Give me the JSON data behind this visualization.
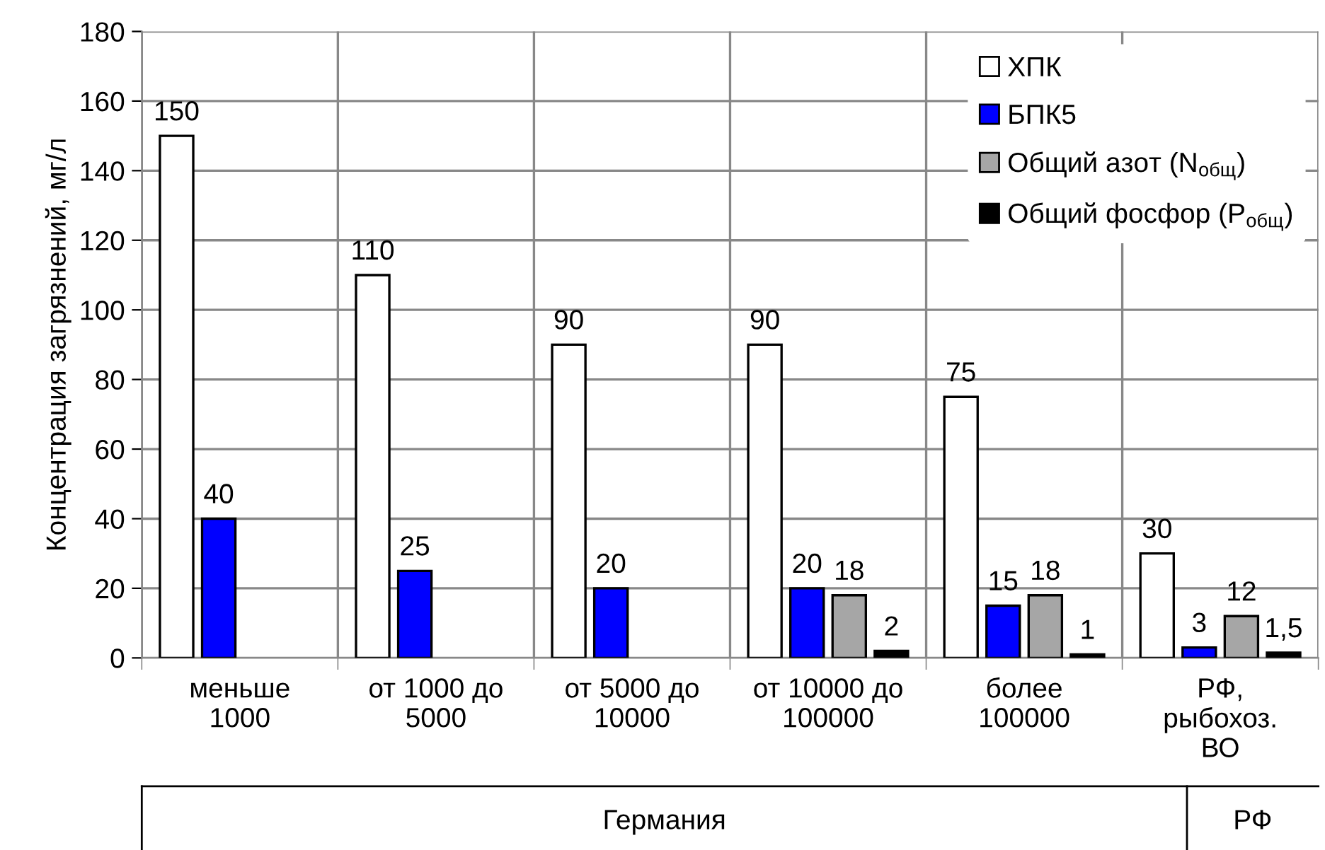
{
  "chart_data": {
    "type": "bar",
    "ylabel": "Концентрация загрязнений, мг/л",
    "categories": [
      "меньше\n1000",
      "от 1000 до\n5000",
      "от 5000 до\n10000",
      "от 10000 до\n100000",
      "более\n100000",
      "РФ,\nрыбохоз.\nВО"
    ],
    "series": [
      {
        "name": "ХПК",
        "color": "#ffffff",
        "values": [
          150,
          110,
          90,
          90,
          75,
          30
        ],
        "value_labels": [
          "150",
          "110",
          "90",
          "90",
          "75",
          "30"
        ]
      },
      {
        "name": "БПК5",
        "color": "#0000ff",
        "values": [
          40,
          25,
          20,
          20,
          15,
          3
        ],
        "value_labels": [
          "40",
          "25",
          "20",
          "20",
          "15",
          "3"
        ]
      },
      {
        "name": "Общий азот (N$_{общ}$)",
        "color": "#a6a6a6",
        "values": [
          null,
          null,
          null,
          18,
          18,
          12
        ],
        "value_labels": [
          null,
          null,
          null,
          "18",
          "18",
          "12"
        ]
      },
      {
        "name": "Общий фосфор (P$_{общ}$)",
        "color": "#000000",
        "values": [
          null,
          null,
          null,
          2,
          1,
          1.5
        ],
        "value_labels": [
          null,
          null,
          null,
          "2",
          "1",
          "1,5"
        ]
      }
    ],
    "ylim": [
      0,
      180
    ],
    "yticks": [
      0,
      20,
      40,
      60,
      80,
      100,
      120,
      140,
      160,
      180
    ],
    "grid": true,
    "legend": "top right",
    "annotations": [
      "Германия",
      "РФ"
    ]
  }
}
